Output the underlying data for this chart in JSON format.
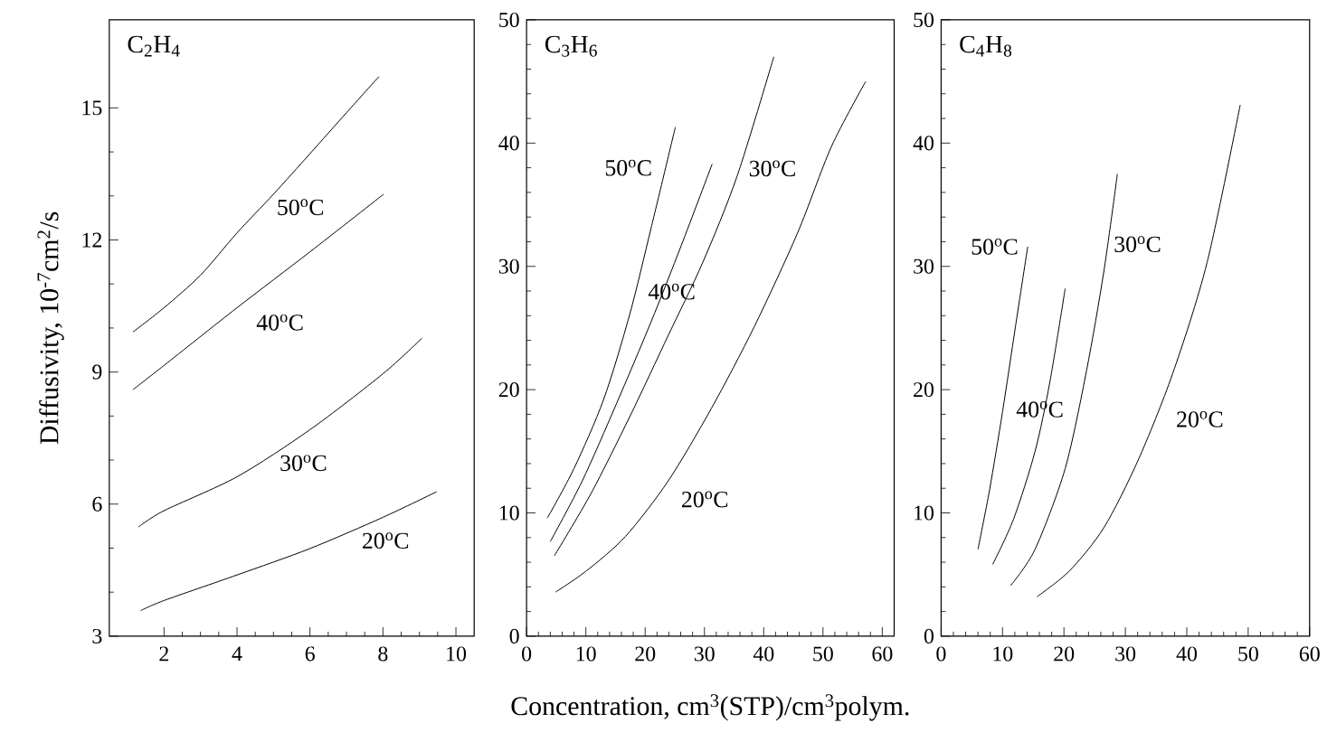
{
  "chart_data": [
    {
      "type": "line",
      "title": "C$_{2}$H$_{4}$",
      "ylabel": "Diffusivity, 10$^{-7}$cm$^{2}$/s",
      "xlim": [
        0.5,
        10.5
      ],
      "ylim": [
        3,
        17
      ],
      "xticks": [
        2,
        4,
        6,
        8,
        10
      ],
      "yticks": [
        3,
        6,
        9,
        12,
        15
      ],
      "line_style": "solid",
      "series": [
        {
          "name": "50$^{o}$C",
          "color": "#000000",
          "x": [
            1.15,
            2,
            3,
            4,
            5,
            6,
            7,
            7.89
          ],
          "values": [
            9.91,
            10.46,
            11.2,
            12.16,
            13.04,
            13.96,
            14.89,
            15.71
          ]
        },
        {
          "name": "40$^{o}$C",
          "color": "#000000",
          "x": [
            1.15,
            2,
            4,
            6,
            8.02
          ],
          "values": [
            8.6,
            9.15,
            10.46,
            11.73,
            13.04
          ]
        },
        {
          "name": "30$^{o}$C",
          "color": "#000000",
          "x": [
            1.3,
            2,
            4,
            6,
            8,
            9.07
          ],
          "values": [
            5.48,
            5.85,
            6.62,
            7.69,
            8.96,
            9.77
          ]
        },
        {
          "name": "20$^{o}$C",
          "color": "#000000",
          "x": [
            1.36,
            2,
            4,
            6,
            8,
            9.47
          ],
          "values": [
            3.58,
            3.81,
            4.39,
            4.99,
            5.7,
            6.28
          ]
        }
      ]
    },
    {
      "type": "line",
      "title": "C$_{3}$H$_{6}$",
      "xlabel": "Concentration, cm$^{3}$(STP)/cm$^{3}$polym.",
      "xlim": [
        0,
        62
      ],
      "ylim": [
        0,
        50
      ],
      "xticks": [
        0,
        10,
        20,
        30,
        40,
        50,
        60
      ],
      "yticks": [
        0,
        10,
        20,
        30,
        40,
        50
      ],
      "line_style": "solid",
      "series": [
        {
          "name": "50$^{o}$C",
          "color": "#000000",
          "x": [
            3.5,
            8,
            13,
            17.4,
            21,
            25.1
          ],
          "values": [
            9.58,
            13.6,
            19.2,
            26.1,
            33.1,
            41.3
          ]
        },
        {
          "name": "40$^{o}$C",
          "color": "#000000",
          "x": [
            4,
            9.4,
            15.2,
            21,
            26.1,
            31.3
          ],
          "values": [
            7.67,
            12.6,
            18.9,
            25.5,
            31.7,
            38.3
          ]
        },
        {
          "name": "30$^{o}$C",
          "color": "#000000",
          "x": [
            4.7,
            10.9,
            17.4,
            23.9,
            29.7,
            35.5,
            41.7
          ],
          "values": [
            6.53,
            11.6,
            17.8,
            24.4,
            30.3,
            37.3,
            47.0
          ]
        },
        {
          "name": "20$^{o}$C",
          "color": "#000000",
          "x": [
            4.9,
            10.1,
            16.7,
            23.9,
            31.2,
            38.4,
            45.7,
            51.4,
            57.2
          ],
          "values": [
            3.58,
            5.3,
            8.1,
            12.6,
            18.5,
            25.1,
            32.7,
            39.7,
            45.0
          ]
        }
      ]
    },
    {
      "type": "line",
      "title": "C$_{4}$H$_{8}$",
      "xlim": [
        0,
        60
      ],
      "ylim": [
        0,
        50
      ],
      "xticks": [
        0,
        10,
        20,
        30,
        40,
        50,
        60
      ],
      "yticks": [
        0,
        10,
        20,
        30,
        40,
        50
      ],
      "line_style": "solid",
      "series": [
        {
          "name": "50$^{o}$C",
          "color": "#000000",
          "x": [
            6.0,
            7.9,
            10.0,
            12.1,
            14.1
          ],
          "values": [
            7.05,
            11.9,
            18.2,
            25.1,
            31.6
          ]
        },
        {
          "name": "40$^{o}$C",
          "color": "#000000",
          "x": [
            8.4,
            11.8,
            15.3,
            17.7,
            20.2
          ],
          "values": [
            5.83,
            9.5,
            15.0,
            20.6,
            28.2
          ]
        },
        {
          "name": "30$^{o}$C",
          "color": "#000000",
          "x": [
            11.3,
            15.3,
            20.2,
            23.7,
            26.5,
            28.7
          ],
          "values": [
            4.1,
            7.05,
            13.6,
            21.6,
            29.6,
            37.5
          ]
        },
        {
          "name": "20$^{o}$C",
          "color": "#000000",
          "x": [
            15.6,
            20.9,
            26.5,
            32.1,
            37.7,
            43.3,
            48.7
          ],
          "values": [
            3.2,
            5.3,
            8.8,
            14.3,
            21.3,
            30.3,
            43.1
          ]
        }
      ]
    }
  ]
}
